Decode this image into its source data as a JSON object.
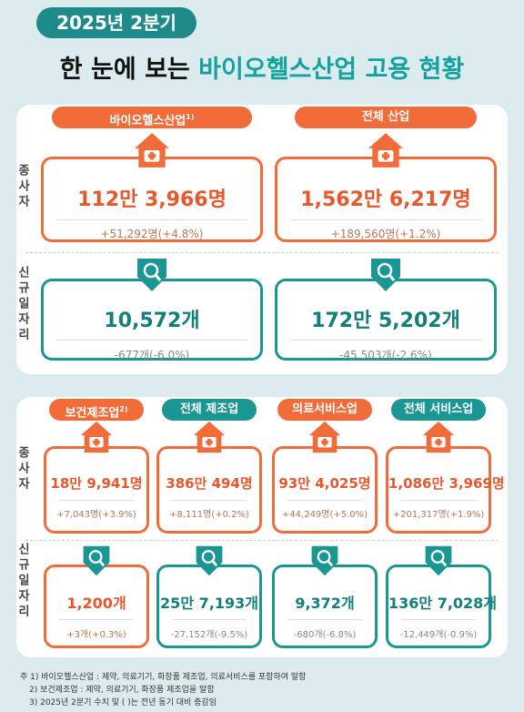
{
  "header": {
    "badge": "2025년 2분기",
    "title_part1": "한 눈에 보는",
    "title_part2": "바이오헬스산업 고용 현황"
  },
  "row_labels": {
    "employed": "종사자",
    "new_jobs": "신규일자리"
  },
  "section1": {
    "columns": [
      {
        "name": "바이오헬스산업",
        "note": "1)",
        "employed": {
          "value": "112만 3,966명",
          "change": "+51,292명(+4.8%)"
        },
        "new_jobs": {
          "value": "10,572개",
          "change": "-677개(-6.0%)"
        }
      },
      {
        "name": "전체 산업",
        "employed": {
          "value": "1,562만 6,217명",
          "change": "+189,560명(+1.2%)"
        },
        "new_jobs": {
          "value": "172만 5,202개",
          "change": "-45,503개(-2.6%)"
        }
      }
    ]
  },
  "section2": {
    "columns": [
      {
        "name": "보건제조업",
        "note": "2)",
        "employed": {
          "value": "18만 9,941명",
          "change": "+7,043명(+3.9%)"
        },
        "new_jobs": {
          "value": "1,200개",
          "change": "+3개(+0.3%)"
        }
      },
      {
        "name": "전체 제조업",
        "employed": {
          "value": "386만 494명",
          "change": "+8,111명(+0.2%)"
        },
        "new_jobs": {
          "value": "25만 7,193개",
          "change": "-27,152개(-9.5%)"
        }
      },
      {
        "name": "의료서비스업",
        "employed": {
          "value": "93만 4,025명",
          "change": "+44,249명(+5.0%)"
        },
        "new_jobs": {
          "value": "9,372개",
          "change": "-680개(-6.8%)"
        }
      },
      {
        "name": "전체 서비스업",
        "employed": {
          "value": "1,086만 3,969명",
          "change": "+201,317명(+1.9%)"
        },
        "new_jobs": {
          "value": "136만 7,028개",
          "change": "-12,449개(-0.9%)"
        }
      }
    ]
  },
  "footnotes": [
    "주 1) 바이오헬스산업 : 제약, 의료기기, 화장품 제조업, 의료서비스를 포함하여 말함",
    "2) 보건제조업 : 제약, 의료기기, 화장품 제조업을 말함",
    "3) 2025년 2분기 수치 및 ( )는 전년 동기 대비 증감임"
  ]
}
